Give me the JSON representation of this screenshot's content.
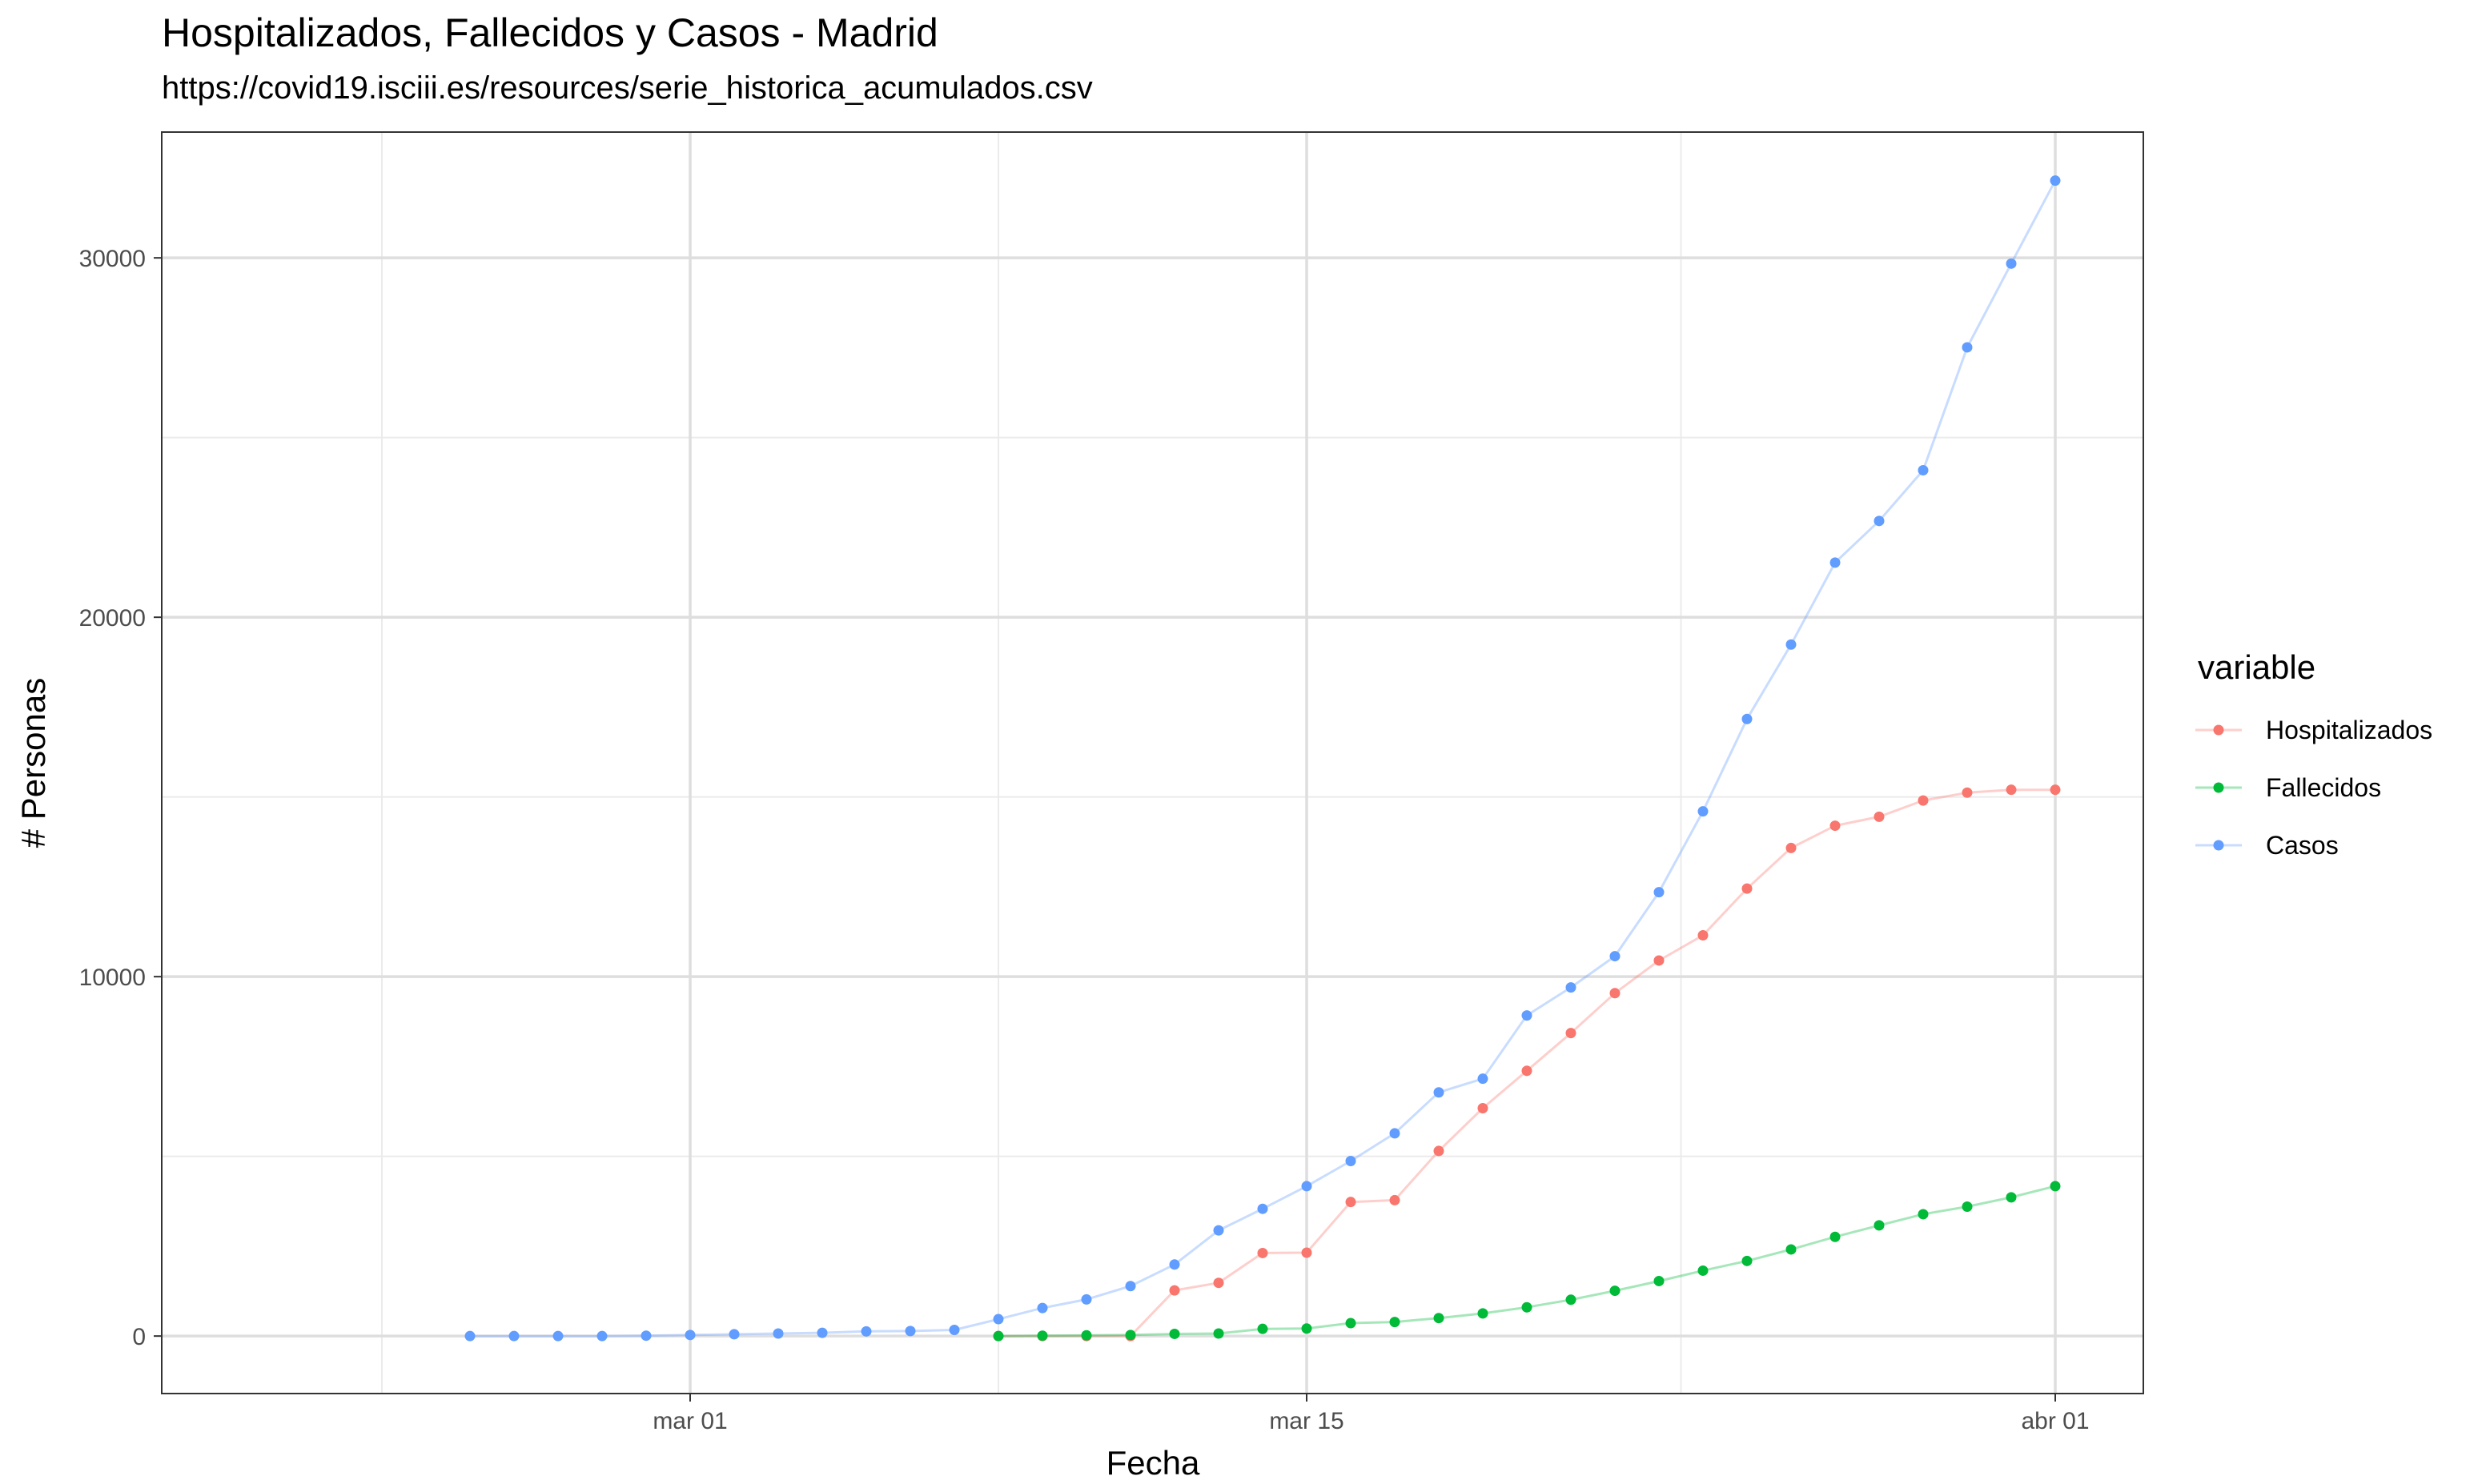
{
  "chart_data": {
    "type": "line",
    "title": "Hospitalizados, Fallecidos y Casos - Madrid",
    "subtitle": "https://covid19.isciii.es/resources/serie_historica_acumulados.csv",
    "xlabel": "Fecha",
    "ylabel": "# Personas",
    "x_range": [
      "2020-02-18",
      "2020-04-03"
    ],
    "ylim": [
      -1600,
      33500
    ],
    "x_ticks": [
      {
        "date": "2020-03-01",
        "label": "mar 01"
      },
      {
        "date": "2020-03-15",
        "label": "mar 15"
      },
      {
        "date": "2020-04-01",
        "label": "abr 01"
      }
    ],
    "y_ticks": [
      0,
      10000,
      20000,
      30000
    ],
    "grid": true,
    "legend": {
      "title": "variable",
      "position": "right"
    },
    "series": [
      {
        "name": "Hospitalizados",
        "color": "#F8766D",
        "dates": [
          "2020-03-08",
          "2020-03-09",
          "2020-03-10",
          "2020-03-11",
          "2020-03-12",
          "2020-03-13",
          "2020-03-14",
          "2020-03-15",
          "2020-03-16",
          "2020-03-17",
          "2020-03-18",
          "2020-03-19",
          "2020-03-20",
          "2020-03-21",
          "2020-03-22",
          "2020-03-23",
          "2020-03-24",
          "2020-03-25",
          "2020-03-26",
          "2020-03-27",
          "2020-03-28",
          "2020-03-29",
          "2020-03-30",
          "2020-03-31",
          "2020-04-01"
        ],
        "values": [
          0,
          0,
          0,
          0,
          1270,
          1480,
          2310,
          2320,
          3730,
          3780,
          5150,
          6340,
          7380,
          8430,
          9540,
          10450,
          11150,
          12450,
          13580,
          14200,
          14450,
          14900,
          15120,
          15200,
          15200
        ]
      },
      {
        "name": "Fallecidos",
        "color": "#00BA38",
        "dates": [
          "2020-03-08",
          "2020-03-09",
          "2020-03-10",
          "2020-03-11",
          "2020-03-12",
          "2020-03-13",
          "2020-03-14",
          "2020-03-15",
          "2020-03-16",
          "2020-03-17",
          "2020-03-18",
          "2020-03-19",
          "2020-03-20",
          "2020-03-21",
          "2020-03-22",
          "2020-03-23",
          "2020-03-24",
          "2020-03-25",
          "2020-03-26",
          "2020-03-27",
          "2020-03-28",
          "2020-03-29",
          "2020-03-30",
          "2020-03-31",
          "2020-04-01"
        ],
        "values": [
          0,
          10,
          20,
          30,
          60,
          70,
          200,
          210,
          360,
          390,
          500,
          630,
          800,
          1010,
          1260,
          1530,
          1820,
          2090,
          2410,
          2760,
          3080,
          3390,
          3600,
          3860,
          4170
        ]
      },
      {
        "name": "Casos",
        "color": "#619CFF",
        "dates": [
          "2020-02-25",
          "2020-02-26",
          "2020-02-27",
          "2020-02-28",
          "2020-02-29",
          "2020-03-01",
          "2020-03-02",
          "2020-03-03",
          "2020-03-04",
          "2020-03-05",
          "2020-03-06",
          "2020-03-07",
          "2020-03-08",
          "2020-03-09",
          "2020-03-10",
          "2020-03-11",
          "2020-03-12",
          "2020-03-13",
          "2020-03-14",
          "2020-03-15",
          "2020-03-16",
          "2020-03-17",
          "2020-03-18",
          "2020-03-19",
          "2020-03-20",
          "2020-03-21",
          "2020-03-22",
          "2020-03-23",
          "2020-03-24",
          "2020-03-25",
          "2020-03-26",
          "2020-03-27",
          "2020-03-28",
          "2020-03-29",
          "2020-03-30",
          "2020-03-31",
          "2020-04-01"
        ],
        "values": [
          0,
          0,
          0,
          0,
          10,
          30,
          50,
          70,
          90,
          130,
          140,
          170,
          470,
          780,
          1020,
          1390,
          1990,
          2940,
          3540,
          4170,
          4870,
          5640,
          6780,
          7160,
          8920,
          9700,
          10570,
          12350,
          14600,
          17170,
          19240,
          21520,
          22680,
          24090,
          27510,
          29840,
          32150
        ]
      }
    ]
  }
}
